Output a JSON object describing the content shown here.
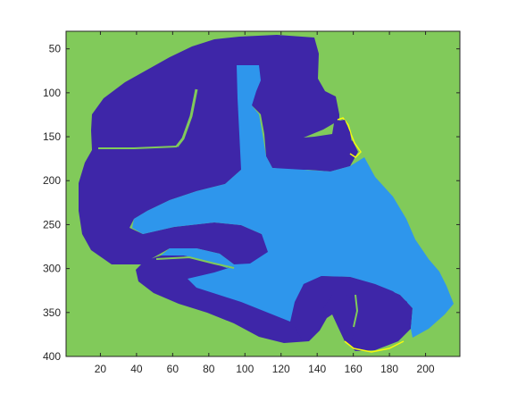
{
  "chart_data": {
    "type": "heatmap",
    "title": "",
    "xlabel": "",
    "ylabel": "",
    "xlim": [
      1,
      219
    ],
    "ylim": [
      400,
      30
    ],
    "y_reversed": true,
    "grid": false,
    "colormap": "parula",
    "x_ticks": [
      20,
      40,
      60,
      80,
      100,
      120,
      140,
      160,
      180,
      200
    ],
    "y_ticks": [
      50,
      100,
      150,
      200,
      250,
      300,
      350,
      400
    ],
    "classes": [
      {
        "value": 1,
        "color": "#3E26A8"
      },
      {
        "value": 2,
        "color": "#2E96EC"
      },
      {
        "value": 3,
        "color": "#81CA5A"
      },
      {
        "value": 4,
        "color": "#F8FA0D"
      }
    ],
    "background_class": 3
  }
}
